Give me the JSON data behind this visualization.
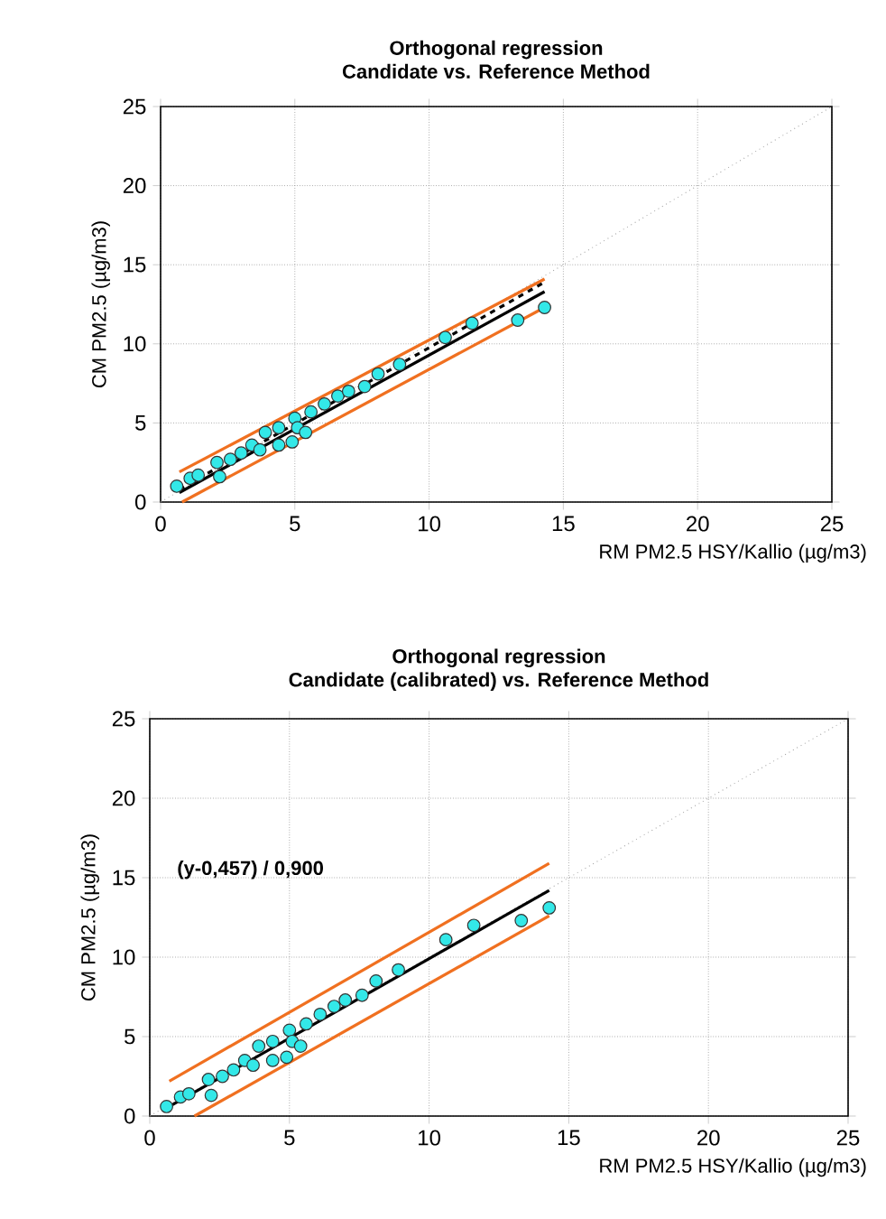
{
  "chart_data": [
    {
      "type": "scatter",
      "title": "Orthogonal regression\nCandidate vs. Reference Method",
      "xlabel": "RM PM2.5 HSY/Kallio  (µg/m3)",
      "ylabel": "CM PM2.5 (µg/m3)",
      "xlim": [
        0,
        25
      ],
      "ylim": [
        0,
        25
      ],
      "xticks": [
        0,
        5,
        10,
        15,
        20,
        25
      ],
      "yticks": [
        0,
        5,
        10,
        15,
        20,
        25
      ],
      "grid": true,
      "series": [
        {
          "type": "line",
          "color": "#a0a0a0",
          "line_style": "dotted",
          "x": [
            0,
            25
          ],
          "values": [
            0,
            25
          ]
        },
        {
          "type": "line",
          "color": "#f07020",
          "line_style": "solid",
          "x": [
            0.7,
            14.3
          ],
          "values": [
            1.9,
            14.1
          ]
        },
        {
          "type": "line",
          "color": "#f07020",
          "line_style": "solid",
          "x": [
            0.8,
            14.3
          ],
          "values": [
            0,
            12.3
          ]
        },
        {
          "type": "line",
          "color": "#000000",
          "line_style": "dashed",
          "x": [
            0.7,
            14.3
          ],
          "values": [
            0.8,
            13.9
          ]
        },
        {
          "type": "line",
          "color": "#000000",
          "line_style": "solid",
          "x": [
            0.7,
            14.3
          ],
          "values": [
            0.6,
            13.3
          ]
        },
        {
          "color": "#33e8e8",
          "marker": "circle",
          "x": [
            0.6,
            1.1,
            1.4,
            2.1,
            2.2,
            2.6,
            3.0,
            3.4,
            3.7,
            3.9,
            4.4,
            4.4,
            4.9,
            5.0,
            5.1,
            5.4,
            5.6,
            6.1,
            6.6,
            7.0,
            7.6,
            8.1,
            8.9,
            10.6,
            11.6,
            13.3,
            14.3
          ],
          "values": [
            1.0,
            1.5,
            1.7,
            2.5,
            1.6,
            2.7,
            3.1,
            3.6,
            3.3,
            4.4,
            4.7,
            3.6,
            3.8,
            5.3,
            4.7,
            4.4,
            5.7,
            6.2,
            6.7,
            7.0,
            7.3,
            8.1,
            8.7,
            10.4,
            11.3,
            11.5,
            12.3
          ]
        }
      ]
    },
    {
      "type": "scatter",
      "title": "Orthogonal regression\nCandidate (calibrated) vs. Reference Method",
      "xlabel": "RM PM2.5 HSY/Kallio  (µg/m3)",
      "ylabel": "CM PM2.5 (µg/m3)",
      "annotations": [
        "(y-0,457) / 0,900"
      ],
      "xlim": [
        0,
        25
      ],
      "ylim": [
        0,
        25
      ],
      "xticks": [
        0,
        5,
        10,
        15,
        20,
        25
      ],
      "yticks": [
        0,
        5,
        10,
        15,
        20,
        25
      ],
      "grid": true,
      "series": [
        {
          "type": "line",
          "color": "#a0a0a0",
          "line_style": "dotted",
          "x": [
            0,
            25
          ],
          "values": [
            0,
            25
          ]
        },
        {
          "type": "line",
          "color": "#f07020",
          "line_style": "solid",
          "x": [
            0.7,
            14.3
          ],
          "values": [
            2.2,
            15.9
          ]
        },
        {
          "type": "line",
          "color": "#f07020",
          "line_style": "solid",
          "x": [
            1.6,
            14.3
          ],
          "values": [
            0,
            12.6
          ]
        },
        {
          "type": "line",
          "color": "#000000",
          "line_style": "solid",
          "x": [
            0.7,
            14.3
          ],
          "values": [
            0.6,
            14.2
          ]
        },
        {
          "color": "#33e8e8",
          "marker": "circle",
          "x": [
            0.6,
            1.1,
            1.4,
            2.1,
            2.2,
            2.6,
            3.0,
            3.4,
            3.7,
            3.9,
            4.4,
            4.4,
            4.9,
            5.0,
            5.1,
            5.4,
            5.6,
            6.1,
            6.6,
            7.0,
            7.6,
            8.1,
            8.9,
            10.6,
            11.6,
            13.3,
            14.3
          ],
          "values": [
            0.6,
            1.2,
            1.4,
            2.3,
            1.3,
            2.5,
            2.9,
            3.5,
            3.2,
            4.4,
            4.7,
            3.5,
            3.7,
            5.4,
            4.7,
            4.4,
            5.8,
            6.4,
            6.9,
            7.3,
            7.6,
            8.5,
            9.2,
            11.1,
            12.0,
            12.3,
            13.1
          ]
        }
      ]
    }
  ]
}
